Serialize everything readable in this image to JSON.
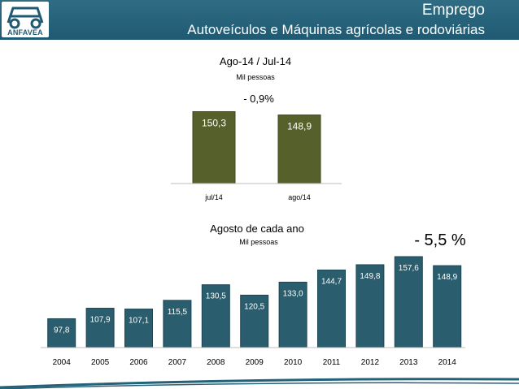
{
  "header": {
    "logo_text": "ANFAVEA",
    "title": "Emprego",
    "subtitle": "Autoveículos e Máquinas agrícolas e rodoviárias"
  },
  "colors": {
    "header": "#24627a",
    "top_bar": "#56602a",
    "bottom_bar": "#2a5d6d"
  },
  "chart_data": [
    {
      "type": "bar",
      "title": "Ago-14 / Jul-14",
      "subtitle": "Mil pessoas",
      "annotation": "- 0,9%",
      "categories": [
        "jul/14",
        "ago/14"
      ],
      "values": [
        150.3,
        148.9
      ],
      "value_labels": [
        "150,3",
        "148,9"
      ],
      "color": "#56602a",
      "grid": false,
      "legend": "none"
    },
    {
      "type": "bar",
      "title": "Agosto de cada ano",
      "subtitle": "Mil pessoas",
      "annotation": "- 5,5 %",
      "categories": [
        "2004",
        "2005",
        "2006",
        "2007",
        "2008",
        "2009",
        "2010",
        "2011",
        "2012",
        "2013",
        "2014"
      ],
      "values": [
        97.8,
        107.9,
        107.1,
        115.5,
        130.5,
        120.5,
        133.0,
        144.7,
        149.8,
        157.6,
        148.9
      ],
      "value_labels": [
        "97,8",
        "107,9",
        "107,1",
        "115,5",
        "130,5",
        "120,5",
        "133,0",
        "144,7",
        "149,8",
        "157,6",
        "148,9"
      ],
      "color": "#2a5d6d",
      "grid": false,
      "legend": "none"
    }
  ]
}
